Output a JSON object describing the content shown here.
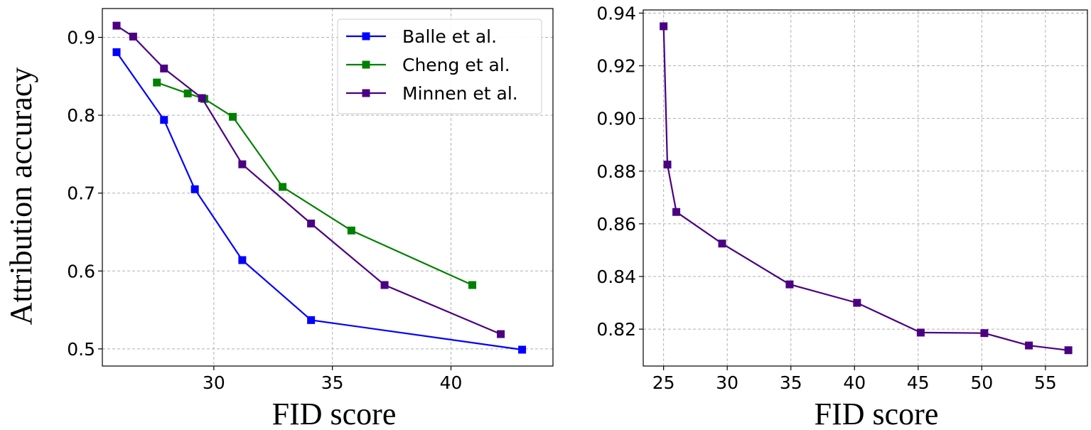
{
  "chart_data": [
    {
      "type": "line",
      "xlabel": "FID score",
      "ylabel": "Attribution accuracy",
      "xlim": [
        25.3,
        44.3
      ],
      "ylim": [
        0.478,
        0.937
      ],
      "xticks": [
        30,
        35,
        40
      ],
      "yticks": [
        0.5,
        0.6,
        0.7,
        0.8,
        0.9
      ],
      "grid": true,
      "legend_position": "top-right",
      "series": [
        {
          "name": "Balle et al.",
          "color": "#0000ff",
          "marker": "square",
          "points": [
            [
              25.9,
              0.881
            ],
            [
              27.9,
              0.794
            ],
            [
              29.2,
              0.705
            ],
            [
              31.2,
              0.614
            ],
            [
              34.1,
              0.537
            ],
            [
              43.0,
              0.499
            ]
          ]
        },
        {
          "name": "Cheng et al.",
          "color": "#008000",
          "marker": "square",
          "points": [
            [
              27.6,
              0.842
            ],
            [
              28.9,
              0.828
            ],
            [
              29.6,
              0.821
            ],
            [
              30.8,
              0.798
            ],
            [
              32.9,
              0.708
            ],
            [
              35.8,
              0.652
            ],
            [
              40.9,
              0.582
            ]
          ]
        },
        {
          "name": "Minnen et al.",
          "color": "#4b0082",
          "marker": "square",
          "points": [
            [
              25.9,
              0.915
            ],
            [
              26.6,
              0.901
            ],
            [
              27.9,
              0.86
            ],
            [
              29.5,
              0.822
            ],
            [
              31.2,
              0.737
            ],
            [
              34.1,
              0.661
            ],
            [
              37.2,
              0.582
            ],
            [
              42.1,
              0.519
            ]
          ]
        }
      ]
    },
    {
      "type": "line",
      "xlabel": "FID score",
      "ylabel": "",
      "xlim": [
        23.4,
        58.3
      ],
      "ylim": [
        0.806,
        0.9412
      ],
      "xticks": [
        25,
        30,
        35,
        40,
        45,
        50,
        55
      ],
      "yticks": [
        0.82,
        0.84,
        0.86,
        0.88,
        0.9,
        0.92,
        0.94
      ],
      "grid": true,
      "series": [
        {
          "name": "",
          "color": "#4b0082",
          "marker": "square",
          "points": [
            [
              25.0,
              0.935
            ],
            [
              25.3,
              0.8825
            ],
            [
              26.0,
              0.8645
            ],
            [
              29.6,
              0.8525
            ],
            [
              34.9,
              0.837
            ],
            [
              40.2,
              0.83
            ],
            [
              45.2,
              0.8187
            ],
            [
              50.2,
              0.8185
            ],
            [
              53.7,
              0.8138
            ],
            [
              56.8,
              0.812
            ]
          ]
        }
      ]
    }
  ]
}
